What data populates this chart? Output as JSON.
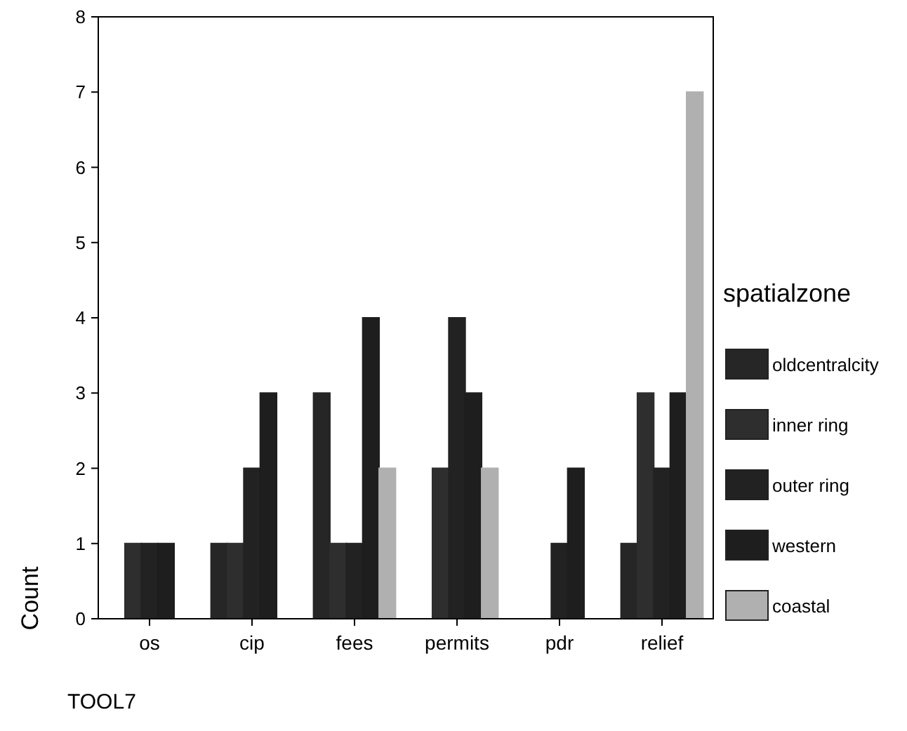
{
  "chart_data": {
    "type": "bar",
    "ylabel": "Count",
    "legend_title": "spatialzone",
    "legend": "right",
    "grid": false,
    "categories": [
      "os",
      "cip",
      "fees",
      "permits",
      "pdr",
      "relief"
    ],
    "series": [
      {
        "name": "oldcentralcity",
        "color": "#262626",
        "values": [
          0,
          1,
          3,
          0,
          0,
          1
        ]
      },
      {
        "name": "inner ring",
        "color": "#2e2e2e",
        "values": [
          1,
          1,
          1,
          2,
          0,
          3
        ]
      },
      {
        "name": "outer ring",
        "color": "#222222",
        "values": [
          1,
          2,
          1,
          4,
          1,
          2
        ]
      },
      {
        "name": "western",
        "color": "#1e1e1e",
        "values": [
          1,
          3,
          4,
          3,
          2,
          3
        ]
      },
      {
        "name": "coastal",
        "color": "#b0b0b0",
        "values": [
          0,
          0,
          2,
          2,
          0,
          7
        ]
      }
    ],
    "ylim": [
      0,
      8
    ],
    "yticks": [
      0,
      1,
      2,
      3,
      4,
      5,
      6,
      7,
      8
    ],
    "annotations": [
      "TOOL7"
    ]
  }
}
